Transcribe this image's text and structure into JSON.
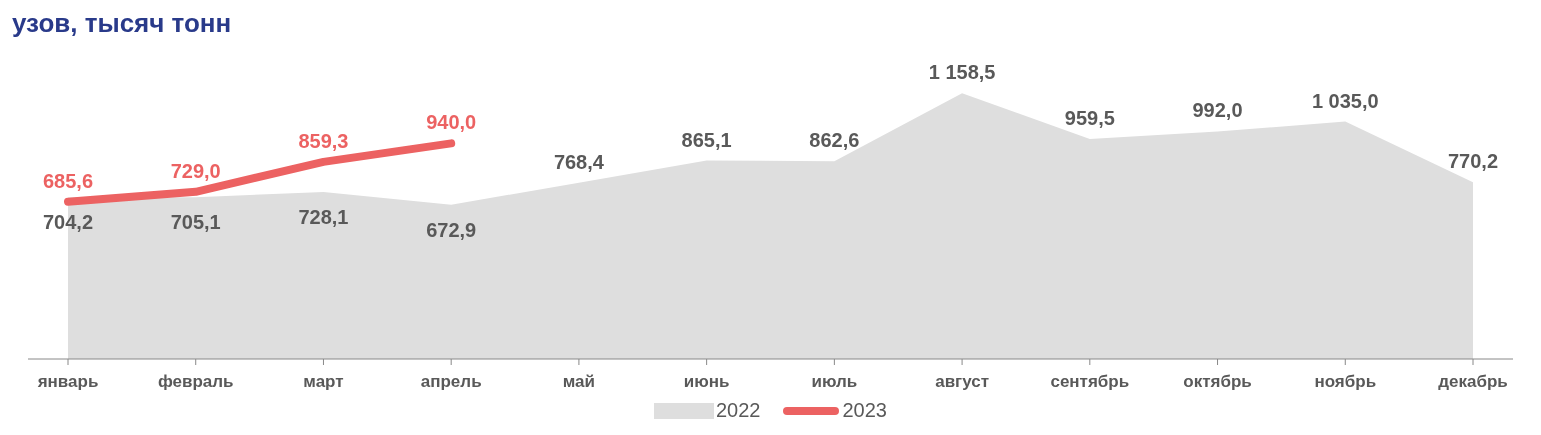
{
  "chart_data": {
    "type": "area",
    "title": "узов, тысяч тонн",
    "categories": [
      "январь",
      "февраль",
      "март",
      "апрель",
      "май",
      "июнь",
      "июль",
      "август",
      "сентябрь",
      "октябрь",
      "ноябрь",
      "декабрь"
    ],
    "series": [
      {
        "name": "2022",
        "color": "#dedede",
        "values": [
          704.2,
          705.1,
          728.1,
          672.9,
          768.4,
          865.1,
          862.6,
          1158.5,
          959.5,
          992.0,
          1035.0,
          770.2
        ],
        "value_labels": [
          "704,2",
          "705,1",
          "728,1",
          "672,9",
          "768,4",
          "865,1",
          "862,6",
          "1 158,5",
          "959,5",
          "992,0",
          "1 035,0",
          "770,2"
        ]
      },
      {
        "name": "2023",
        "type": "line",
        "color": "#ec6262",
        "values": [
          685.6,
          729.0,
          859.3,
          940.0,
          null,
          null,
          null,
          null,
          null,
          null,
          null,
          null
        ],
        "value_labels": [
          "685,6",
          "729,0",
          "859,3",
          "940,0",
          null,
          null,
          null,
          null,
          null,
          null,
          null,
          null
        ]
      }
    ],
    "legend": "bottom",
    "grid": false,
    "marker": "none"
  }
}
